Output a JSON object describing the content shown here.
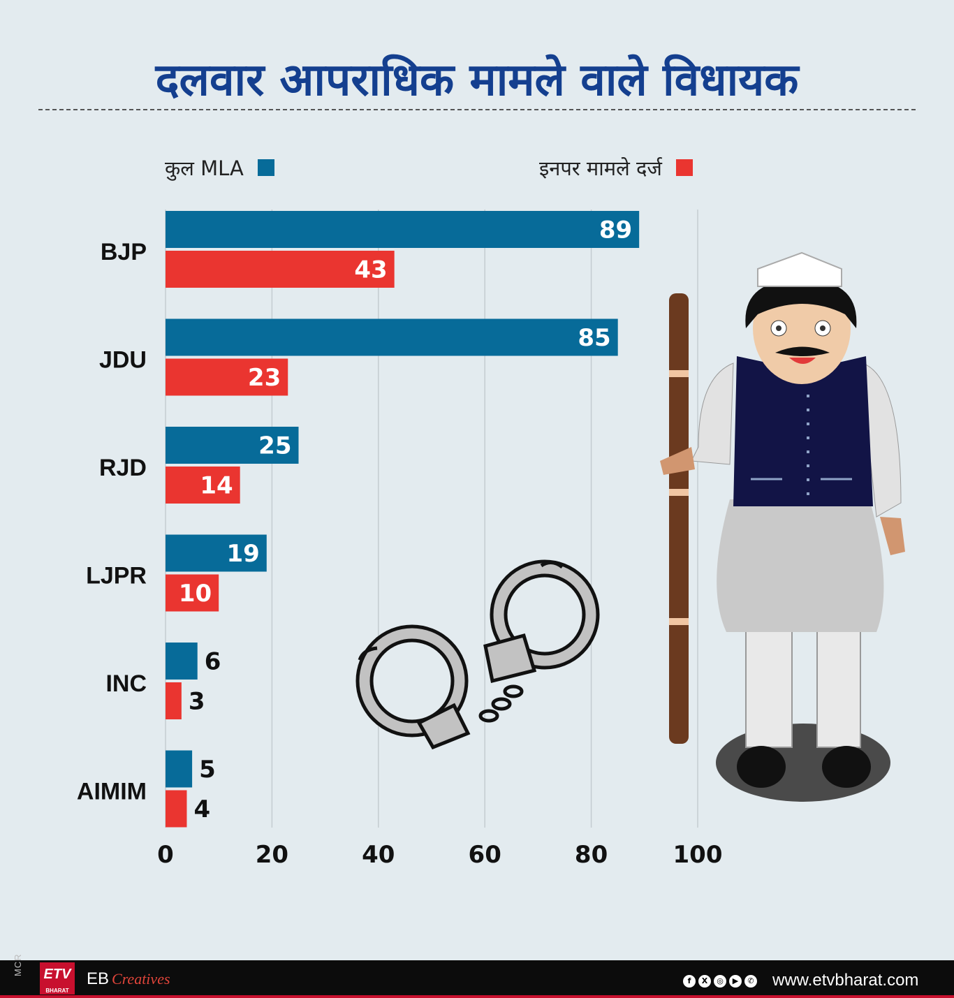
{
  "chart_data": {
    "type": "bar",
    "orientation": "horizontal",
    "title": "दलवार आपराधिक मामले वाले विधायक",
    "categories": [
      "BJP",
      "JDU",
      "RJD",
      "LJPR",
      "INC",
      "AIMIM"
    ],
    "series": [
      {
        "name": "कुल MLA",
        "color": "#076b99",
        "values": [
          89,
          85,
          25,
          19,
          6,
          5
        ]
      },
      {
        "name": "इनपर मामले दर्ज",
        "color": "#ea3530",
        "values": [
          43,
          23,
          14,
          10,
          3,
          4
        ]
      }
    ],
    "xlim": [
      0,
      100
    ],
    "xticks": [
      "0",
      "20",
      "40",
      "60",
      "80",
      "100"
    ],
    "grid": true,
    "legend_position": "top"
  },
  "footer": {
    "mcr": "MCR",
    "logo_text": "ETV",
    "logo_sub": "BHARAT",
    "eb": "EB",
    "creatives": "Creatives",
    "social_icons": [
      "facebook-icon",
      "x-icon",
      "instagram-icon",
      "youtube-icon",
      "whatsapp-icon"
    ],
    "social_glyphs": [
      "f",
      "X",
      "◎",
      "▶",
      "✆"
    ],
    "website": "www.etvbharat.com"
  }
}
